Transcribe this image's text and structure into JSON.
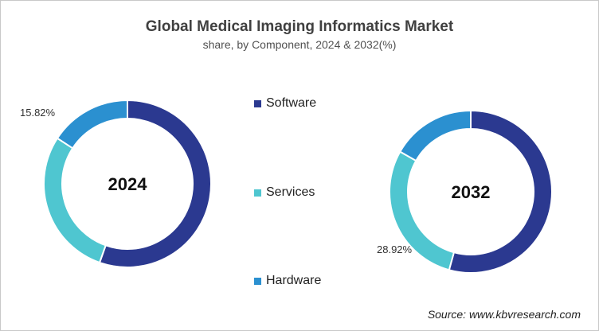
{
  "chart_data": [
    {
      "type": "pie",
      "donut": true,
      "title": "Global Medical Imaging Informatics Market",
      "subtitle": "share, by Component, 2024 & 2032(%)",
      "center_label": "2024",
      "categories": [
        "Software",
        "Services",
        "Hardware"
      ],
      "values": [
        55.4,
        28.78,
        15.82
      ],
      "data_labels": [
        {
          "category": "Hardware",
          "text": "15.82%"
        }
      ]
    },
    {
      "type": "pie",
      "donut": true,
      "center_label": "2032",
      "categories": [
        "Software",
        "Services",
        "Hardware"
      ],
      "values": [
        54.3,
        28.92,
        16.78
      ],
      "data_labels": [
        {
          "category": "Services",
          "text": "28.92%"
        }
      ]
    }
  ],
  "legend": {
    "placement": "center",
    "items": [
      {
        "label": "Software",
        "color": "#2b3990"
      },
      {
        "label": "Services",
        "color": "#4fc6d0"
      },
      {
        "label": "Hardware",
        "color": "#2b90d0"
      }
    ]
  },
  "source": "Source: www.kbvresearch.com"
}
